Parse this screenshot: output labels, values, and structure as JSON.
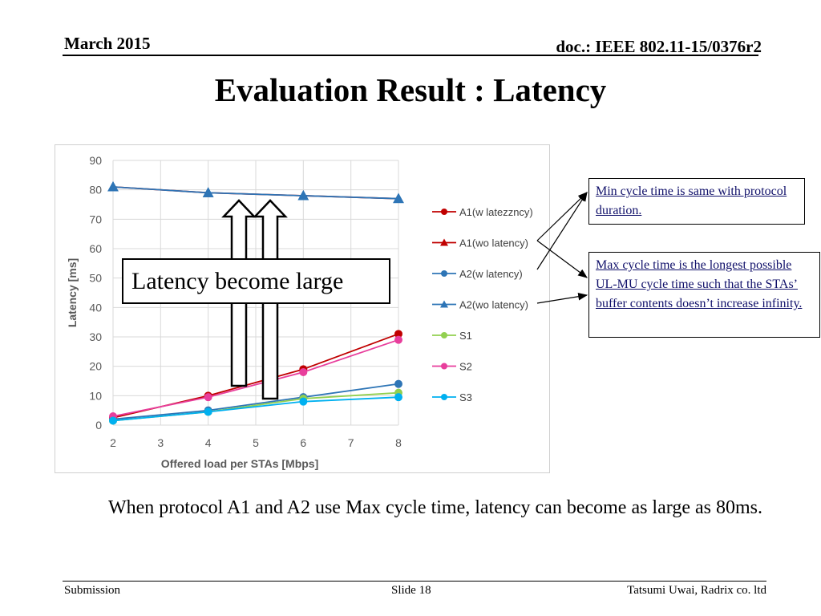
{
  "header": {
    "date": "March 2015",
    "doc": "doc.: IEEE 802.11-15/0376r2"
  },
  "title": "Evaluation Result : Latency",
  "chart_data": {
    "type": "line",
    "title": "",
    "xlabel": "Offered load per STAs [Mbps]",
    "ylabel": "Latency [ms]",
    "xlim": [
      2,
      8
    ],
    "ylim": [
      0,
      90
    ],
    "x_ticks": [
      2,
      3,
      4,
      5,
      6,
      7,
      8
    ],
    "y_ticks": [
      0,
      10,
      20,
      30,
      40,
      50,
      60,
      70,
      80,
      90
    ],
    "x": [
      2,
      4,
      6,
      8
    ],
    "grid": true,
    "legend_position": "right",
    "series": [
      {
        "name": "A1(w latezzncy)",
        "values": [
          2.5,
          10,
          19,
          31
        ],
        "color": "#c00000",
        "marker": "circle"
      },
      {
        "name": "A1(wo latency)",
        "values": [
          81,
          79,
          78,
          77
        ],
        "color": "#c00000",
        "marker": "triangle"
      },
      {
        "name": "A2(w latency)",
        "values": [
          2,
          5,
          9.5,
          14
        ],
        "color": "#2e75b6",
        "marker": "circle"
      },
      {
        "name": "A2(wo latency)",
        "values": [
          81,
          79,
          78,
          77
        ],
        "color": "#2e75b6",
        "marker": "triangle"
      },
      {
        "name": "S1",
        "values": [
          1.5,
          4.5,
          9,
          11
        ],
        "color": "#92d050",
        "marker": "circle"
      },
      {
        "name": "S2",
        "values": [
          3,
          9.5,
          18,
          29
        ],
        "color": "#e83e9c",
        "marker": "circle"
      },
      {
        "name": "S3",
        "values": [
          1.5,
          4.5,
          8,
          9.5
        ],
        "color": "#00b0f0",
        "marker": "circle"
      }
    ]
  },
  "annotations": {
    "big_label": "Latency become large",
    "callout_min": "Min cycle time is same with protocol duration.",
    "callout_max": "Max cycle time is the longest possible UL-MU cycle time such that  the STAs’ buffer contents doesn’t increase infinity."
  },
  "body_text": "When protocol A1 and A2 use Max cycle time, latency can become as large as 80ms.",
  "footer": {
    "left": "Submission",
    "center": "Slide 18",
    "right": "Tatsumi Uwai, Radrix co. ltd"
  }
}
